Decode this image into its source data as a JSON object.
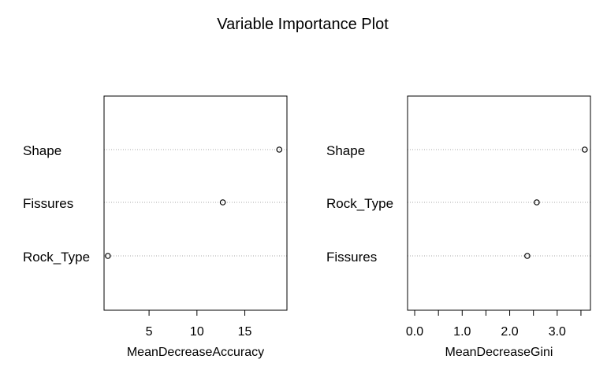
{
  "title": "Variable Importance Plot",
  "chart_data": [
    {
      "type": "scatter",
      "variables": [
        "Shape",
        "Fissures",
        "Rock_Type"
      ],
      "values": [
        18.6,
        12.7,
        0.7
      ],
      "xlabel": "MeanDecreaseAccuracy",
      "xlim": [
        0.3,
        19.4
      ],
      "xticks": [
        5,
        10,
        15
      ],
      "grid": "dotted"
    },
    {
      "type": "scatter",
      "variables": [
        "Shape",
        "Rock_Type",
        "Fissures"
      ],
      "values": [
        3.58,
        2.57,
        2.37
      ],
      "xlabel": "MeanDecreaseGini",
      "xlim": [
        -0.15,
        3.7
      ],
      "xticks": [
        0.0,
        0.5,
        1.0,
        1.5,
        2.0,
        2.5,
        3.0,
        3.5
      ],
      "xtick_labels": [
        "0.0",
        "",
        "1.0",
        "",
        "2.0",
        "",
        "3.0",
        ""
      ],
      "grid": "dotted"
    }
  ]
}
